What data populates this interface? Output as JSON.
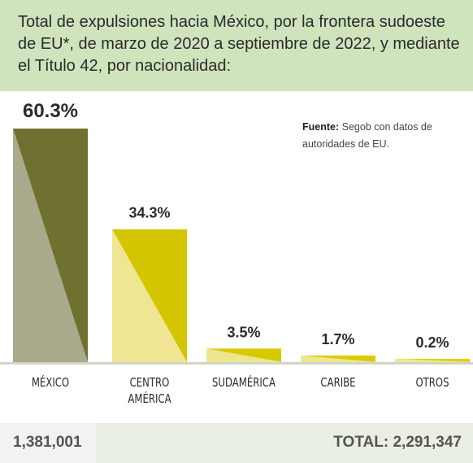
{
  "header": {
    "title": "Total de expulsiones hacia México, por la frontera sudoeste de EU*, de marzo de 2020 a septiembre de 2022, y mediante el Título 42, por nacionalidad:"
  },
  "source": {
    "label": "Fuente:",
    "text": "Segob con datos de autoridades de EU."
  },
  "chart_data": {
    "type": "bar",
    "categories": [
      [
        "MÉXICO"
      ],
      [
        "CENTRO",
        "AMÉRICA"
      ],
      [
        "SUDAMÉRICA"
      ],
      [
        "CARIBE"
      ],
      [
        "OTROS"
      ]
    ],
    "values": [
      60.3,
      34.3,
      3.5,
      1.7,
      0.2
    ],
    "value_labels": [
      "60.3%",
      "34.3%",
      "3.5%",
      "1.7%",
      "0.2%"
    ],
    "ylim": [
      0,
      60.3
    ],
    "colors": {
      "bar_dark": [
        "#6e7130",
        "#d3c600",
        "#d6c900",
        "#d9cd00",
        "#dcd100"
      ],
      "bar_light": [
        "#a9a98c",
        "#efe592",
        "#efe58f",
        "#f0e690",
        "#f1e890"
      ],
      "baseline": "#cfd6c4",
      "label": "#2b2b2b"
    }
  },
  "footer": {
    "mexico_total": "1,381,001",
    "grand_total": "TOTAL: 2,291,347"
  }
}
